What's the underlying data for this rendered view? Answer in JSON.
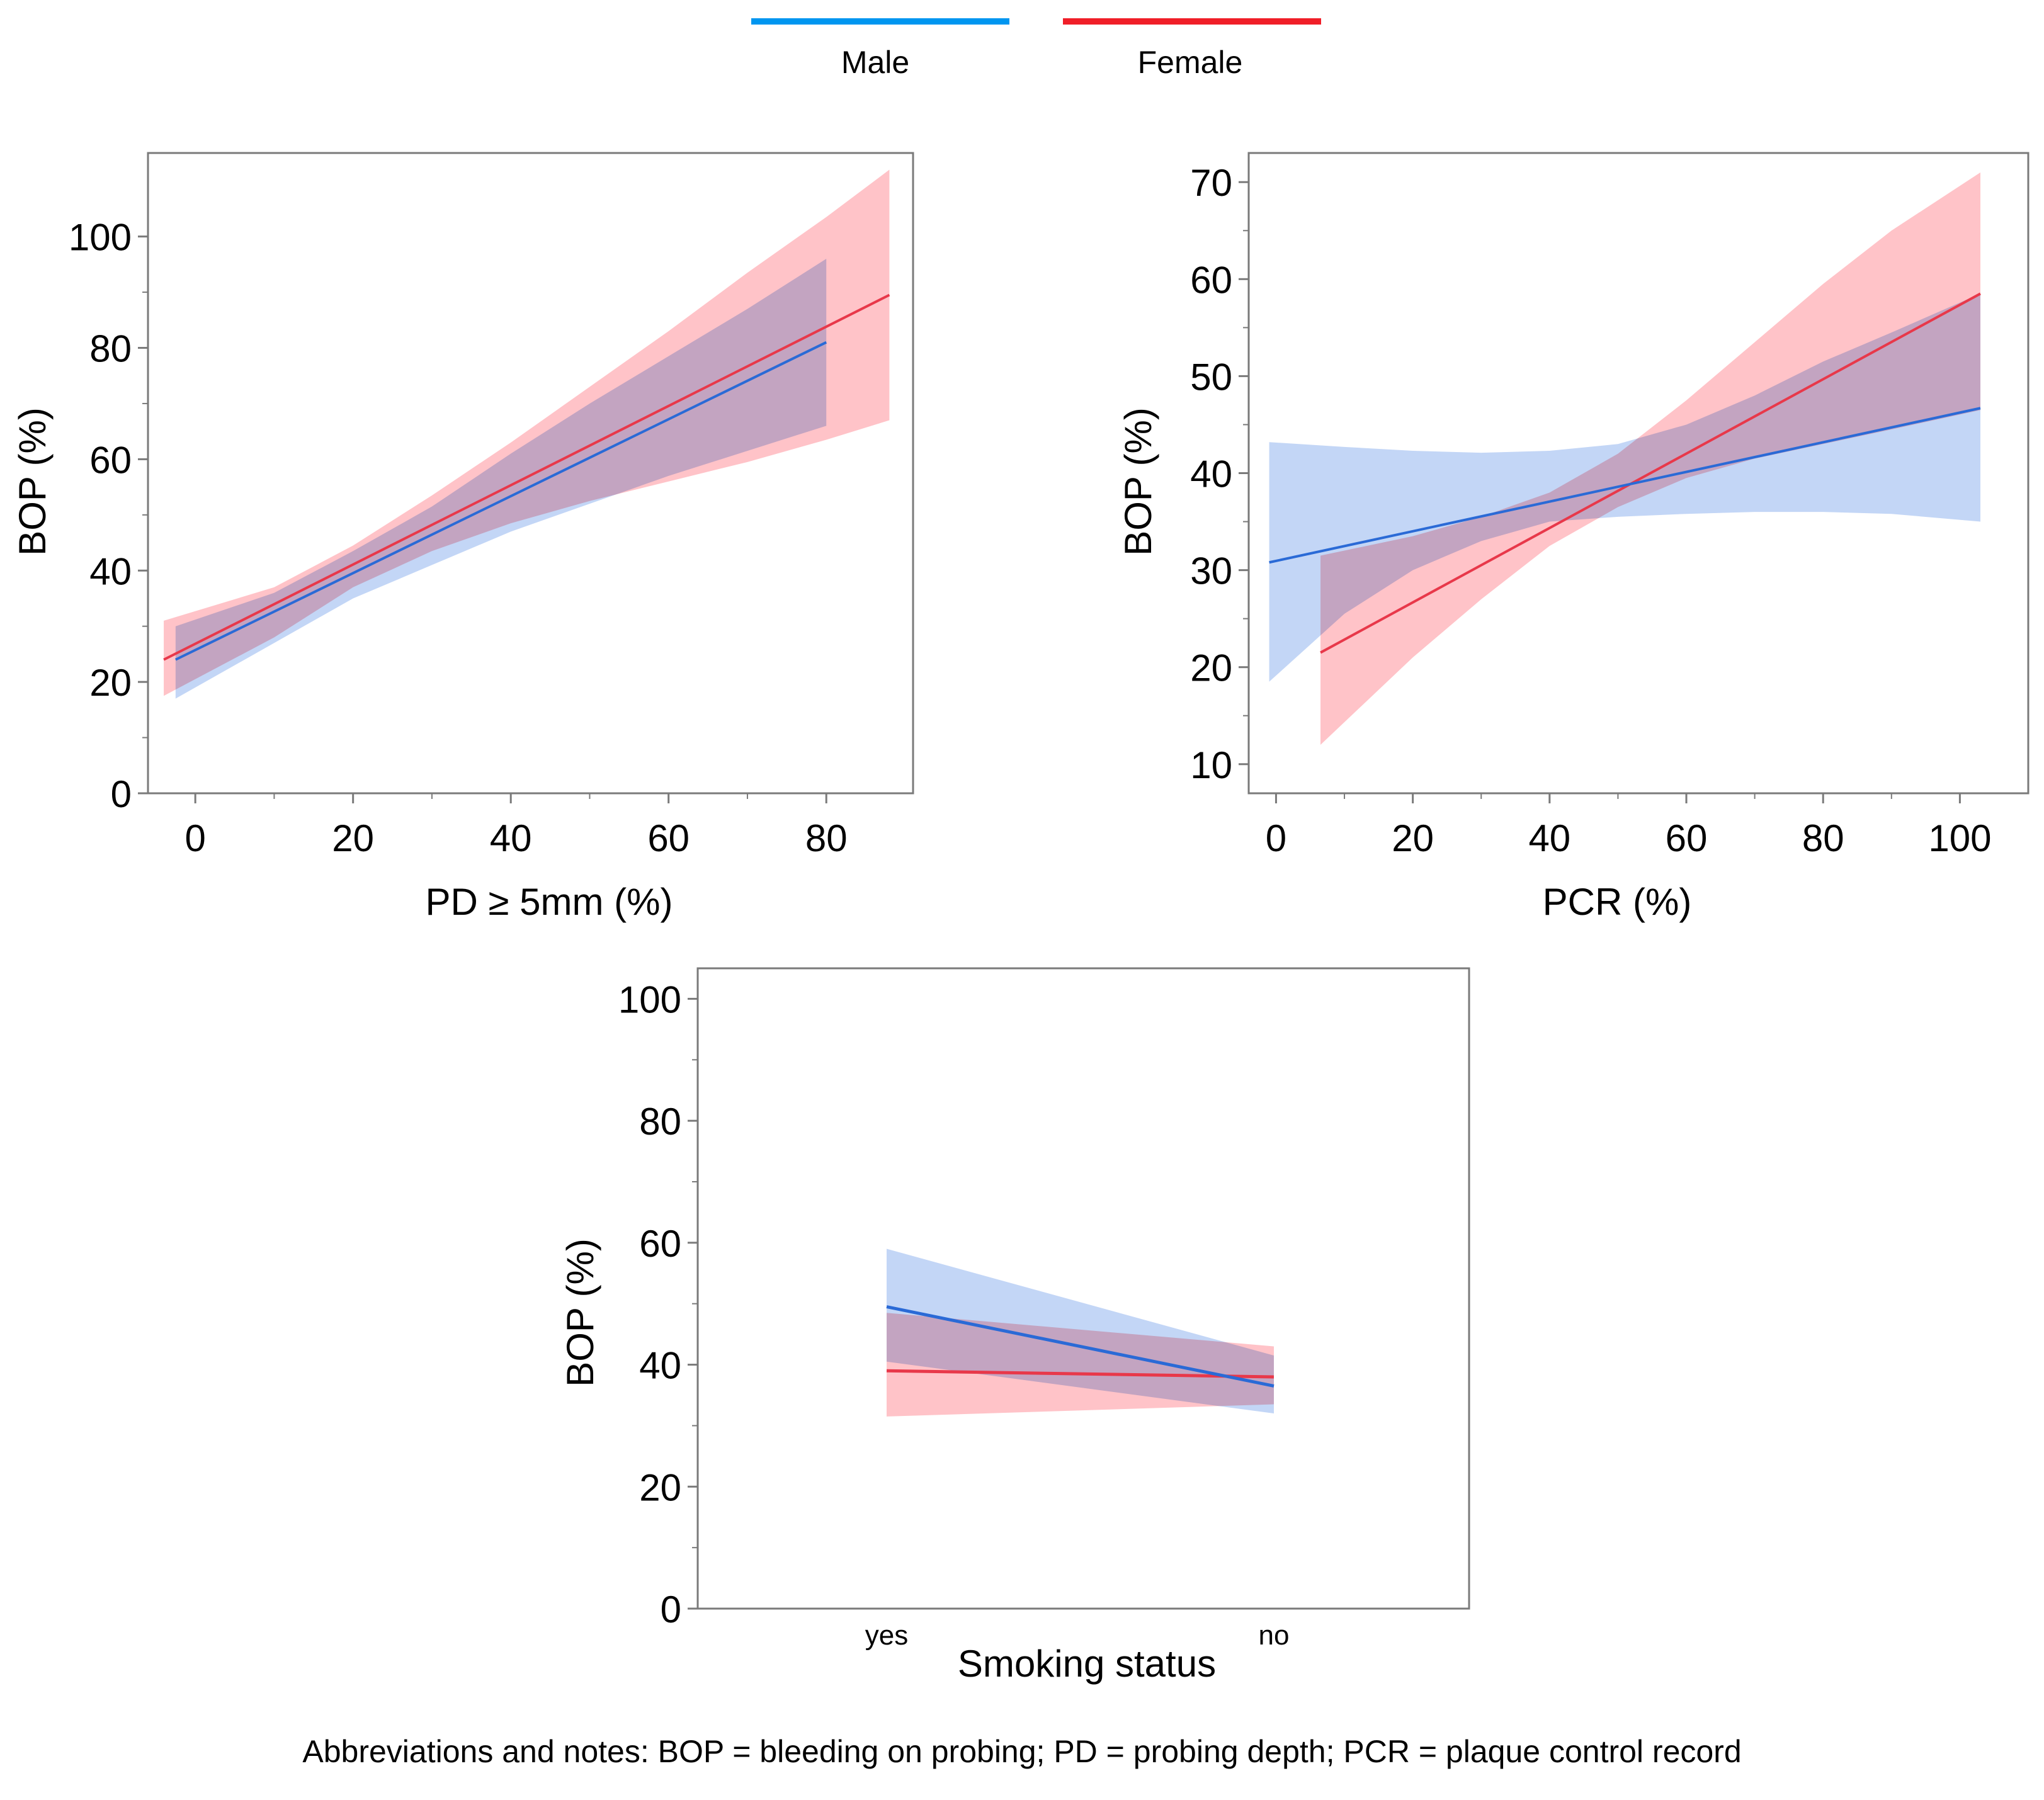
{
  "legend": {
    "items": [
      {
        "label": "Male",
        "color": "#0096f0"
      },
      {
        "label": "Female",
        "color": "#f01e28"
      }
    ]
  },
  "colors": {
    "male_line": "#2a6ad6",
    "female_line": "#e8384a",
    "male_band": "#c3d6f6",
    "female_band": "#ffc3c8",
    "overlap_band": "#d2b2cf"
  },
  "chart_data": [
    {
      "id": "pd",
      "type": "line",
      "title": "",
      "xlabel": "PD ≥ 5mm  (%)",
      "ylabel": "BOP (%)",
      "xlim": [
        -6,
        91
      ],
      "ylim": [
        0,
        115
      ],
      "xticks": [
        0,
        20,
        40,
        60,
        80
      ],
      "xtick_labels": [
        "0",
        "20",
        "40",
        "60",
        "80"
      ],
      "yticks": [
        0,
        20,
        40,
        60,
        80,
        100
      ],
      "ytick_labels": [
        "0",
        "20",
        "40",
        "60",
        "80",
        "100"
      ],
      "grid": false,
      "series": [
        {
          "name": "Male",
          "x": [
            -2.5,
            80
          ],
          "y": [
            24,
            81
          ],
          "band_x": [
            -2.5,
            10,
            20,
            30,
            40,
            50,
            60,
            70,
            80
          ],
          "band_lower": [
            17,
            27,
            35,
            41,
            47,
            52,
            57,
            61.5,
            66
          ],
          "band_upper": [
            30,
            36,
            43.5,
            51.5,
            61,
            70,
            78.5,
            87,
            96
          ]
        },
        {
          "name": "Female",
          "x": [
            -4,
            88
          ],
          "y": [
            24,
            89.5
          ],
          "band_x": [
            -4,
            10,
            20,
            30,
            40,
            50,
            60,
            70,
            80,
            88
          ],
          "band_lower": [
            17.5,
            28,
            37,
            43.5,
            48.5,
            52.5,
            56,
            59.5,
            63.5,
            67
          ],
          "band_upper": [
            31,
            37,
            44.5,
            53.5,
            63,
            73,
            83,
            93.5,
            103.5,
            112
          ]
        }
      ]
    },
    {
      "id": "pcr",
      "type": "line",
      "title": "",
      "xlabel": "PCR (%)",
      "ylabel": "BOP (%)",
      "xlim": [
        -4,
        110
      ],
      "ylim": [
        7,
        73
      ],
      "xticks": [
        0,
        20,
        40,
        60,
        80,
        100
      ],
      "xtick_labels": [
        "0",
        "20",
        "40",
        "60",
        "80",
        "100"
      ],
      "yticks": [
        10,
        20,
        30,
        40,
        50,
        60,
        70
      ],
      "ytick_labels": [
        "10",
        "20",
        "30",
        "40",
        "50",
        "60",
        "70"
      ],
      "grid": false,
      "series": [
        {
          "name": "Male",
          "x": [
            -1,
            103
          ],
          "y": [
            30.8,
            46.7
          ],
          "band_x": [
            -1,
            10,
            20,
            30,
            40,
            50,
            60,
            70,
            80,
            90,
            103
          ],
          "band_lower": [
            18.5,
            25.5,
            30,
            33,
            35,
            35.5,
            35.8,
            36,
            36,
            35.8,
            35
          ],
          "band_upper": [
            43.2,
            42.7,
            42.3,
            42.1,
            42.3,
            43,
            45,
            48,
            51.5,
            54.5,
            58.5
          ]
        },
        {
          "name": "Female",
          "x": [
            6.5,
            103
          ],
          "y": [
            21.5,
            58.5
          ],
          "band_x": [
            6.5,
            20,
            30,
            40,
            50,
            60,
            70,
            80,
            90,
            103
          ],
          "band_lower": [
            12,
            21,
            27,
            32.5,
            36.5,
            39.5,
            41.5,
            43,
            44.5,
            46.5
          ],
          "band_upper": [
            31.5,
            33.5,
            35.5,
            38,
            42,
            47.5,
            53.5,
            59.5,
            65,
            71
          ]
        }
      ]
    },
    {
      "id": "smoking",
      "type": "line",
      "title": "",
      "xlabel": "Smoking status",
      "ylabel": "BOP (%)",
      "categories": [
        "yes",
        "no"
      ],
      "ylim": [
        0,
        105
      ],
      "yticks": [
        0,
        20,
        40,
        60,
        80,
        100
      ],
      "ytick_labels": [
        "0",
        "20",
        "40",
        "60",
        "80",
        "100"
      ],
      "grid": false,
      "series": [
        {
          "name": "Male",
          "values": [
            49.5,
            36.5
          ],
          "lower": [
            40.5,
            32
          ],
          "upper": [
            59,
            41.5
          ]
        },
        {
          "name": "Female",
          "values": [
            39,
            38
          ],
          "lower": [
            31.5,
            33.5
          ],
          "upper": [
            48.5,
            43
          ]
        }
      ]
    }
  ],
  "footnote": "Abbreviations and notes: BOP = bleeding on probing; PD = probing depth; PCR = plaque control record"
}
